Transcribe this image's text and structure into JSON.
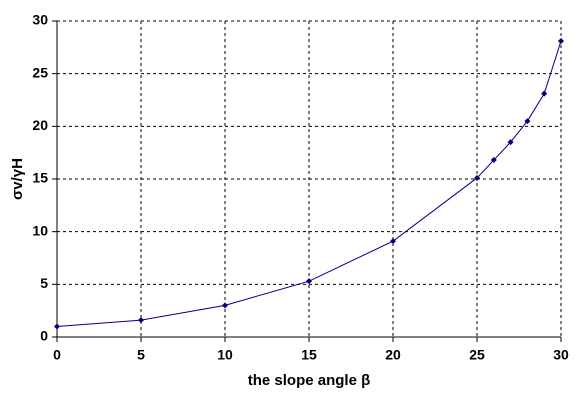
{
  "chart_data": {
    "type": "line",
    "x_label": "the slope angle β",
    "y_label": "σv/γH",
    "x": [
      0,
      5,
      10,
      15,
      20,
      25,
      26,
      27,
      28,
      29,
      30
    ],
    "series": [
      {
        "color": "#000080",
        "values": [
          1.0,
          1.6,
          3.0,
          5.3,
          9.1,
          15.1,
          16.8,
          18.5,
          20.5,
          23.1,
          28.1
        ]
      }
    ],
    "xlim": [
      0,
      30
    ],
    "xticks": [
      0,
      5,
      10,
      15,
      20,
      25,
      30
    ],
    "ylim": [
      0,
      30
    ],
    "yticks": [
      0,
      5,
      10,
      15,
      20,
      25,
      30
    ],
    "grid": true
  }
}
